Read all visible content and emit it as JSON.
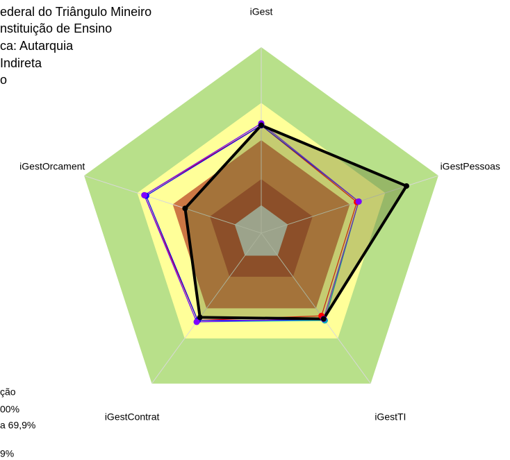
{
  "chart_data": {
    "type": "radar",
    "header_lines": [
      "ederal do Triângulo Mineiro",
      "nstituição de Ensino",
      "ca: Autarquia",
      "Indireta",
      "o"
    ],
    "legend_lines": [
      "ção",
      "00%",
      "a 69,9%",
      "9%"
    ],
    "categories": [
      "iGest",
      "iGestPessoas",
      "iGestTI",
      "iGestContrat",
      "iGestOrcament"
    ],
    "ylim": [
      0,
      100
    ],
    "bands": [
      {
        "value": 100,
        "color": "#b8e08a"
      },
      {
        "value": 70,
        "color": "#ffff99"
      },
      {
        "value": 50,
        "color": "#cc7744"
      },
      {
        "value": 29,
        "color": "#a8402a"
      },
      {
        "value": 15,
        "color": "#c0c0c0"
      }
    ],
    "series": [
      {
        "color": "#ff0000",
        "values": [
          58,
          54,
          55,
          58,
          66
        ]
      },
      {
        "color": "#0000ff",
        "values": [
          58,
          55,
          58,
          58,
          65
        ]
      },
      {
        "color": "#00b0c0",
        "values": [
          59,
          55,
          58,
          59,
          66
        ]
      },
      {
        "color": "#8000ff",
        "values": [
          59,
          55,
          57,
          59,
          66
        ]
      },
      {
        "color": "#000000",
        "values": [
          58,
          82,
          57,
          56,
          43
        ]
      }
    ]
  }
}
